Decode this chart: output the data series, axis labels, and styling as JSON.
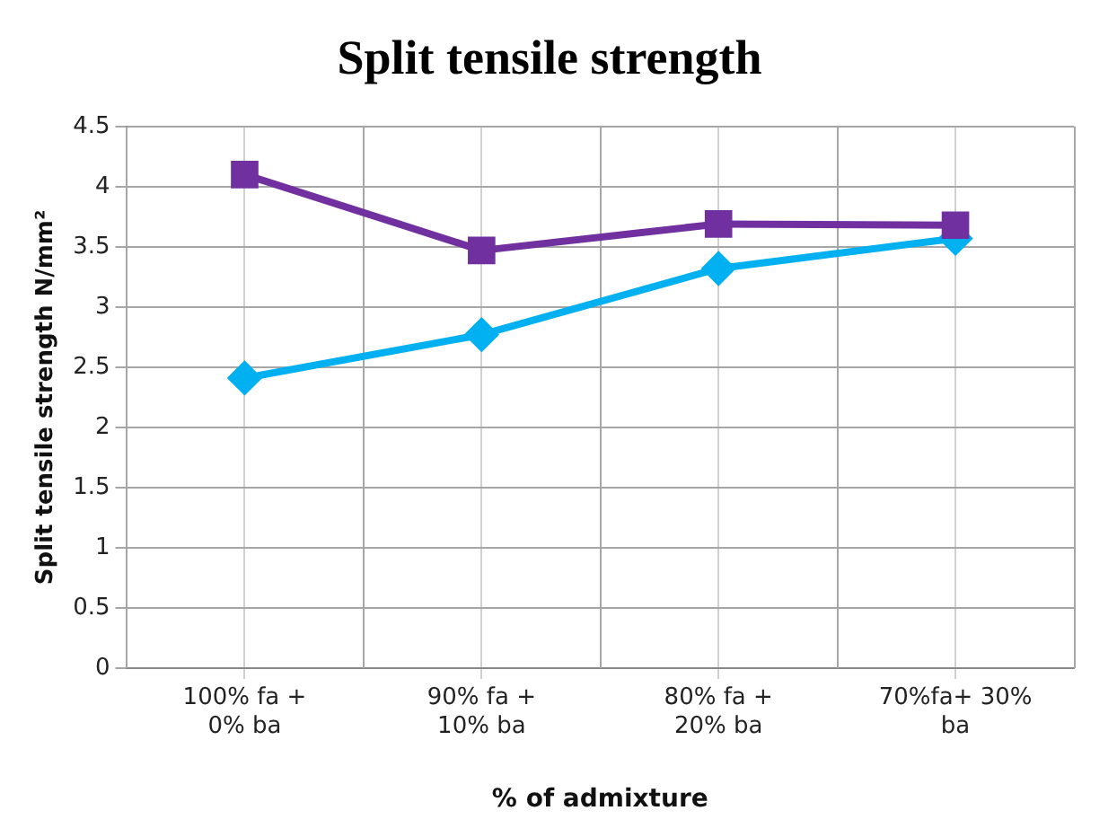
{
  "chart_data": {
    "type": "line",
    "title": "Split tensile strength",
    "xlabel": "% of admixture",
    "ylabel": "Split tensile strength N/mm²",
    "categories": [
      "100% fa + 0% ba",
      "90% fa + 10% ba",
      "80% fa + 20% ba",
      "70%fa+ 30% ba"
    ],
    "series": [
      {
        "color": "#7030a0",
        "marker": "square",
        "values": [
          4.1,
          3.47,
          3.69,
          3.68
        ]
      },
      {
        "color": "#00b0f0",
        "marker": "diamond",
        "values": [
          2.41,
          2.77,
          3.32,
          3.57
        ]
      }
    ],
    "ylim": [
      0,
      4.5
    ],
    "yticks": [
      0,
      0.5,
      1,
      1.5,
      2,
      2.5,
      3,
      3.5,
      4,
      4.5
    ],
    "grid": true,
    "legend": false
  }
}
